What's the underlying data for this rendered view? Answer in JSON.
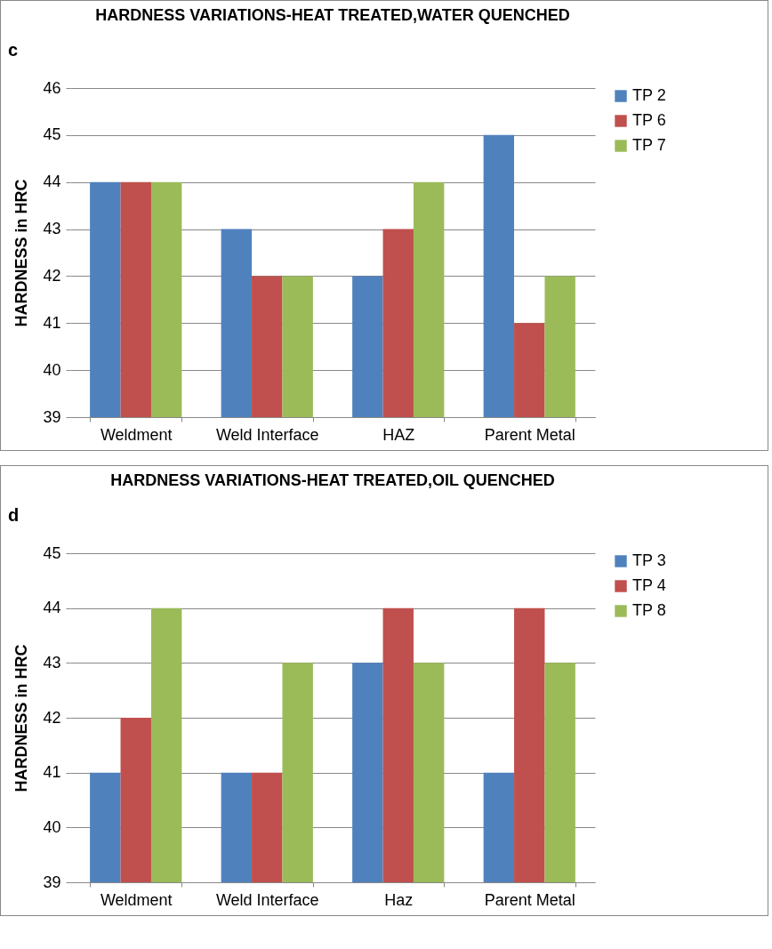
{
  "chart_data": [
    {
      "type": "bar",
      "title": "HARDNESS VARIATIONS-HEAT TREATED,WATER QUENCHED",
      "ylabel": "HARDNESS in HRC",
      "annotations": [
        "c"
      ],
      "categories": [
        "Weldment",
        "Weld Interface",
        "HAZ",
        "Parent Metal"
      ],
      "series": [
        {
          "name": "TP 2",
          "color": "#4f81bd",
          "values": [
            44,
            43,
            42,
            45
          ]
        },
        {
          "name": "TP 6",
          "color": "#c0504d",
          "values": [
            44,
            42,
            43,
            41
          ]
        },
        {
          "name": "TP 7",
          "color": "#9bbb59",
          "values": [
            44,
            42,
            44,
            42
          ]
        }
      ],
      "ylim": [
        39,
        46
      ],
      "yticks": [
        39,
        40,
        41,
        42,
        43,
        44,
        45,
        46
      ],
      "grid": "y",
      "legend": "right"
    },
    {
      "type": "bar",
      "title": "HARDNESS VARIATIONS-HEAT TREATED,OIL QUENCHED",
      "ylabel": "HARDNESS in HRC",
      "annotations": [
        "d"
      ],
      "categories": [
        "Weldment",
        "Weld Interface",
        "Haz",
        "Parent Metal"
      ],
      "series": [
        {
          "name": "TP 3",
          "color": "#4f81bd",
          "values": [
            41,
            41,
            43,
            41
          ]
        },
        {
          "name": "TP 4",
          "color": "#c0504d",
          "values": [
            42,
            41,
            44,
            44
          ]
        },
        {
          "name": "TP 8",
          "color": "#9bbb59",
          "values": [
            44,
            43,
            43,
            43
          ]
        }
      ],
      "ylim": [
        39,
        45
      ],
      "yticks": [
        39,
        40,
        41,
        42,
        43,
        44,
        45
      ],
      "grid": "y",
      "legend": "right"
    }
  ]
}
